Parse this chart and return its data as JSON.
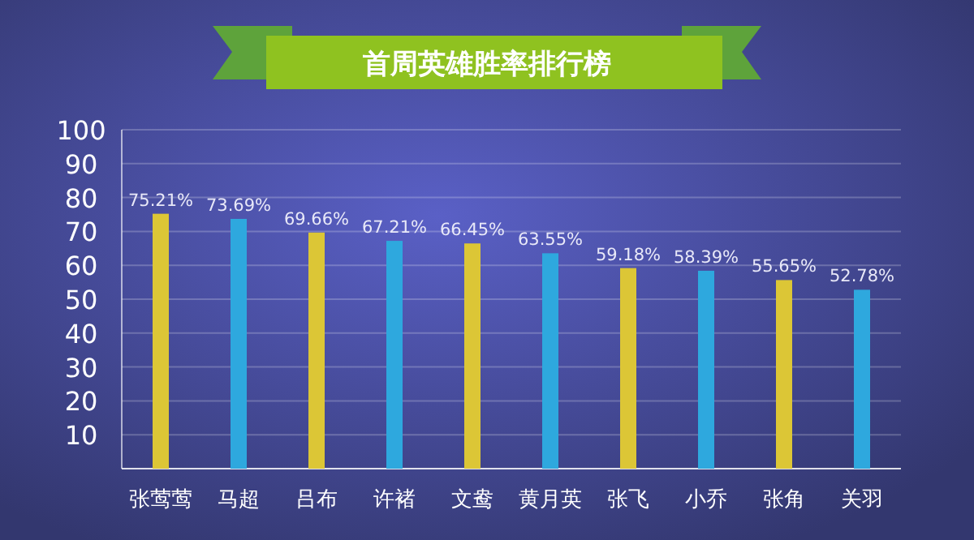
{
  "chart_data": {
    "type": "bar",
    "title": "首周英雄胜率排行榜",
    "categories": [
      "张莺莺",
      "马超",
      "吕布",
      "许褚",
      "文鸯",
      "黄月英",
      "张飞",
      "小乔",
      "张角",
      "关羽"
    ],
    "values": [
      75.21,
      73.69,
      69.66,
      67.21,
      66.45,
      63.55,
      59.18,
      58.39,
      55.65,
      52.78
    ],
    "colors": [
      "#dcc636",
      "#2ea8de",
      "#dcc636",
      "#2ea8de",
      "#dcc636",
      "#2ea8de",
      "#dcc636",
      "#2ea8de",
      "#dcc636",
      "#2ea8de"
    ],
    "value_labels": [
      "75.21%",
      "73.69%",
      "69.66%",
      "67.21%",
      "66.45%",
      "63.55%",
      "59.18%",
      "58.39%",
      "55.65%",
      "52.78%"
    ],
    "ylim": [
      0,
      100
    ],
    "yticks": [
      {
        "value": 0,
        "label": null
      },
      10,
      20,
      30,
      40,
      50,
      60,
      70,
      80,
      90,
      100
    ],
    "grid": "y"
  }
}
